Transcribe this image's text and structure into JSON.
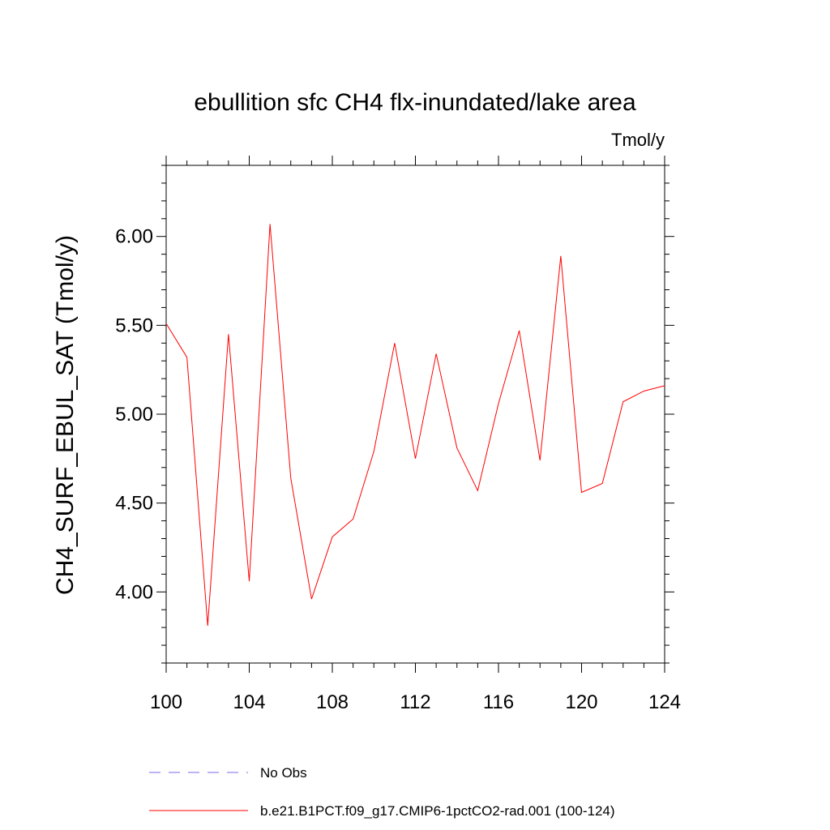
{
  "chart_data": {
    "type": "line",
    "title": "ebullition sfc CH4 flx-inundated/lake area",
    "units": "Tmol/y",
    "xlabel": "",
    "ylabel": "CH4_SURF_EBUL_SAT  (Tmol/y)",
    "xlim": [
      100,
      124
    ],
    "ylim": [
      3.6,
      6.4
    ],
    "xticks": [
      100,
      104,
      108,
      112,
      116,
      120,
      124
    ],
    "xtick_labels": [
      "100",
      "104",
      "108",
      "112",
      "116",
      "120",
      "124"
    ],
    "yticks": [
      4.0,
      4.5,
      5.0,
      5.5,
      6.0
    ],
    "ytick_labels": [
      "4.00",
      "4.50",
      "5.00",
      "5.50",
      "6.00"
    ],
    "grid": false,
    "legend_position": "bottom",
    "series": [
      {
        "name": "b.e21.B1PCT.f09_g17.CMIP6-1pctCO2-rad.001 (100-124)",
        "color": "#ff0000",
        "style": "solid",
        "x": [
          100,
          101,
          102,
          103,
          104,
          105,
          106,
          107,
          108,
          109,
          110,
          111,
          112,
          113,
          114,
          115,
          116,
          117,
          118,
          119,
          120,
          121,
          122,
          123,
          124
        ],
        "y": [
          5.51,
          5.32,
          3.81,
          5.45,
          4.06,
          6.07,
          4.64,
          3.96,
          4.31,
          4.41,
          4.79,
          5.4,
          4.75,
          5.34,
          4.81,
          4.57,
          5.06,
          5.47,
          4.74,
          5.89,
          4.56,
          4.61,
          5.07,
          5.13,
          5.16
        ]
      },
      {
        "name": "No Obs",
        "color": "#7b68ee",
        "style": "dashed",
        "x": [],
        "y": []
      }
    ]
  }
}
